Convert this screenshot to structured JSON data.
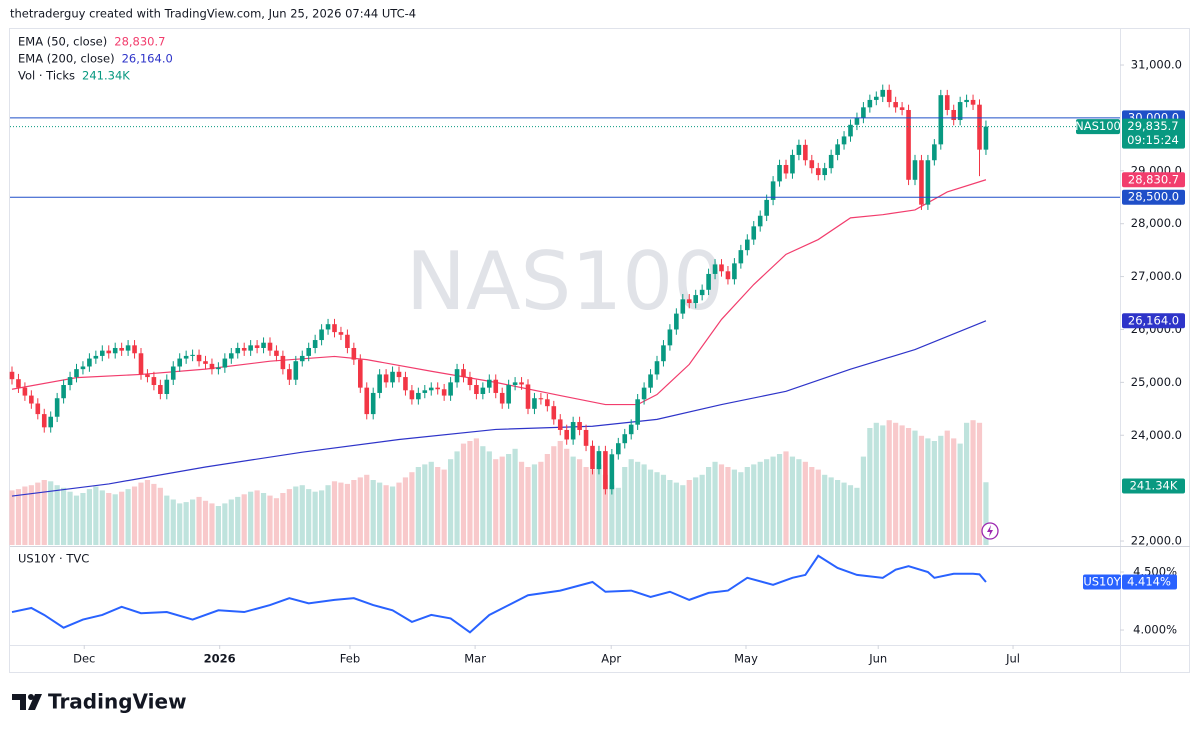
{
  "header": "thetraderguy created with TradingView.com, Jun 25, 2026 07:44 UTC-4",
  "footer": "TradingView",
  "chart_data": [
    {
      "type": "candlestick",
      "symbol": "NAS100",
      "up_color": "#089981",
      "down_color": "#f23645",
      "open": [
        25200,
        25060,
        24900,
        24750,
        24600,
        24400,
        24150,
        24350,
        24700,
        24950,
        25100,
        25250,
        25300,
        25450,
        25500,
        25600,
        25550,
        25650,
        25600,
        25700,
        25550,
        25150,
        25100,
        24950,
        24780,
        25050,
        25300,
        25450,
        25500,
        25520,
        25400,
        25350,
        25250,
        25280,
        25450,
        25550,
        25650,
        25600,
        25700,
        25650,
        25750,
        25600,
        25500,
        25250,
        25050,
        25400,
        25500,
        25650,
        25800,
        26000,
        26100,
        25950,
        25900,
        25650,
        25430,
        24900,
        24400,
        24800,
        25150,
        25000,
        25200,
        25100,
        24850,
        24680,
        24800,
        24850,
        24900,
        24870,
        24750,
        25000,
        25250,
        25100,
        24950,
        24780,
        24900,
        25050,
        24800,
        24600,
        24950,
        25000,
        24960,
        24500,
        24700,
        24680,
        24550,
        24300,
        24100,
        23920,
        24250,
        24100,
        23800,
        23360,
        23700,
        22980,
        23640,
        23850,
        24020,
        24200,
        24680,
        24900,
        25150,
        25400,
        25700,
        26000,
        26300,
        26570,
        26500,
        26650,
        26750,
        27050,
        27230,
        27100,
        26950,
        27250,
        27500,
        27700,
        27950,
        28150,
        28450,
        28800,
        29110,
        28950,
        29300,
        29490,
        29200,
        29050,
        28920,
        29050,
        29300,
        29500,
        29650,
        29870,
        30000,
        30200,
        30340,
        30400,
        30530,
        30300,
        30200,
        30150,
        28830,
        29200,
        28360,
        29200,
        29500,
        30430,
        30150,
        29960,
        30300,
        30340,
        30250,
        29400
      ],
      "high": [
        25300,
        25160,
        25000,
        24850,
        24700,
        24500,
        24450,
        24800,
        25050,
        25200,
        25350,
        25400,
        25550,
        25600,
        25700,
        25700,
        25750,
        25750,
        25800,
        25800,
        25650,
        25250,
        25200,
        25050,
        25150,
        25400,
        25550,
        25600,
        25620,
        25620,
        25500,
        25450,
        25380,
        25550,
        25650,
        25750,
        25750,
        25800,
        25800,
        25850,
        25850,
        25700,
        25600,
        25350,
        25500,
        25600,
        25750,
        25900,
        26100,
        26200,
        26200,
        26050,
        26000,
        25750,
        25530,
        25000,
        24900,
        25250,
        25250,
        25300,
        25300,
        25200,
        24950,
        24900,
        24950,
        25000,
        25000,
        24970,
        25100,
        25350,
        25350,
        25200,
        25050,
        25000,
        25150,
        25150,
        24900,
        25050,
        25100,
        25100,
        25060,
        24800,
        24800,
        24780,
        24650,
        24400,
        24200,
        24350,
        24350,
        24200,
        23900,
        23800,
        23800,
        23740,
        23950,
        24120,
        24300,
        24780,
        25000,
        25250,
        25500,
        25800,
        26100,
        26400,
        26670,
        26670,
        26750,
        26850,
        27150,
        27330,
        27330,
        27200,
        27350,
        27600,
        27800,
        28050,
        28250,
        28550,
        28900,
        29210,
        29210,
        29400,
        29590,
        29590,
        29300,
        29150,
        29150,
        29400,
        29600,
        29750,
        29970,
        30100,
        30300,
        30440,
        30500,
        30630,
        30630,
        30400,
        30300,
        30250,
        29300,
        29300,
        29300,
        29600,
        30530,
        30530,
        30250,
        30400,
        30440,
        30440,
        30350,
        29950
      ],
      "low": [
        24960,
        24800,
        24650,
        24500,
        24300,
        24050,
        24050,
        24250,
        24600,
        24850,
        25000,
        25150,
        25200,
        25350,
        25400,
        25450,
        25450,
        25500,
        25500,
        25450,
        25050,
        25000,
        24850,
        24680,
        24680,
        24950,
        25200,
        25350,
        25400,
        25300,
        25250,
        25150,
        25150,
        25180,
        25350,
        25450,
        25500,
        25500,
        25550,
        25550,
        25500,
        25400,
        25150,
        24950,
        24950,
        25300,
        25400,
        25550,
        25700,
        25900,
        25850,
        25800,
        25550,
        25330,
        24800,
        24300,
        24300,
        24700,
        24900,
        24900,
        25000,
        24750,
        24580,
        24580,
        24700,
        24750,
        24770,
        24650,
        24650,
        24900,
        25000,
        24850,
        24680,
        24680,
        24800,
        24700,
        24500,
        24500,
        24850,
        24860,
        24400,
        24400,
        24580,
        24450,
        24200,
        24000,
        23820,
        23820,
        24000,
        23700,
        23260,
        23260,
        22880,
        22880,
        23540,
        23750,
        23920,
        24100,
        24580,
        24800,
        25050,
        25300,
        25600,
        25900,
        26200,
        26400,
        26400,
        26550,
        26650,
        26950,
        27000,
        26850,
        26850,
        27150,
        27400,
        27600,
        27850,
        28050,
        28350,
        28700,
        28850,
        28850,
        29200,
        29100,
        28950,
        28820,
        28820,
        28950,
        29200,
        29400,
        29550,
        29770,
        29900,
        30100,
        30240,
        30300,
        30200,
        30100,
        30050,
        28730,
        28730,
        28260,
        28260,
        29100,
        29400,
        30050,
        29860,
        29860,
        30200,
        30150,
        28900,
        29300
      ],
      "close": [
        25060,
        24900,
        24750,
        24600,
        24400,
        24150,
        24350,
        24700,
        24950,
        25100,
        25250,
        25300,
        25450,
        25500,
        25600,
        25550,
        25650,
        25600,
        25700,
        25550,
        25150,
        25100,
        24950,
        24780,
        25050,
        25300,
        25450,
        25500,
        25520,
        25400,
        25350,
        25250,
        25280,
        25450,
        25550,
        25650,
        25600,
        25700,
        25650,
        25750,
        25600,
        25500,
        25250,
        25050,
        25400,
        25500,
        25650,
        25800,
        26000,
        26100,
        25950,
        25900,
        25650,
        25430,
        24900,
        24400,
        24800,
        25150,
        25000,
        25200,
        25100,
        24850,
        24680,
        24800,
        24850,
        24900,
        24870,
        24750,
        25000,
        25250,
        25100,
        24950,
        24780,
        24900,
        25050,
        24800,
        24600,
        24950,
        25000,
        24960,
        24500,
        24700,
        24680,
        24550,
        24300,
        24100,
        23920,
        24250,
        24100,
        23800,
        23360,
        23700,
        22980,
        23640,
        23850,
        24020,
        24200,
        24680,
        24900,
        25150,
        25400,
        25700,
        26000,
        26300,
        26570,
        26500,
        26650,
        26750,
        27050,
        27230,
        27100,
        26950,
        27250,
        27500,
        27700,
        27950,
        28150,
        28450,
        28800,
        29110,
        28950,
        29300,
        29490,
        29200,
        29050,
        28920,
        29050,
        29300,
        29500,
        29650,
        29870,
        30000,
        30200,
        30340,
        30400,
        30530,
        30300,
        30200,
        30150,
        28830,
        29200,
        28360,
        29200,
        29500,
        30430,
        30150,
        29960,
        30300,
        30340,
        30250,
        29400,
        29835.7
      ],
      "close_label": "29,835.7",
      "countdown": "09:15:24",
      "ylim": [
        21925,
        31700
      ],
      "yticks": [
        {
          "value": 31000,
          "label": "31,000.0"
        },
        {
          "value": 29000,
          "label": "29,000.0"
        },
        {
          "value": 28000,
          "label": "28,000.0"
        },
        {
          "value": 27000,
          "label": "27,000.0"
        },
        {
          "value": 26000,
          "label": "26,000.0"
        },
        {
          "value": 25000,
          "label": "25,000.0"
        },
        {
          "value": 24000,
          "label": "24,000.0"
        },
        {
          "value": 22000,
          "label": "22,000.0"
        }
      ],
      "xticks": [
        {
          "value": 11.2,
          "label": "Dec"
        },
        {
          "value": 32.2,
          "label": "2026"
        },
        {
          "value": 52.4,
          "label": "Feb"
        },
        {
          "value": 71.8,
          "label": "Mar"
        },
        {
          "value": 92.9,
          "label": "Apr"
        },
        {
          "value": 113.8,
          "label": "May"
        },
        {
          "value": 134.3,
          "label": "Jun"
        },
        {
          "value": 155.2,
          "label": "Jul"
        }
      ],
      "hlines": [
        {
          "value": 30000,
          "label": "30,000.0",
          "color": "#1f4fc8"
        },
        {
          "value": 28500,
          "label": "28,500.0",
          "color": "#1f4fc8"
        }
      ],
      "indicators": [
        {
          "name": "EMA (50, close)",
          "last_label": "28,830.7",
          "color": "#f23d6d",
          "x": [
            0,
            10,
            20,
            30,
            40,
            50,
            55,
            65,
            75,
            85,
            92,
            97,
            100,
            105,
            110,
            115,
            120,
            125,
            130,
            135,
            140,
            145,
            151
          ],
          "values": [
            24870,
            25090,
            25150,
            25250,
            25400,
            25490,
            25430,
            25210,
            25000,
            24750,
            24580,
            24580,
            24770,
            25340,
            26190,
            26850,
            27420,
            27700,
            28110,
            28170,
            28260,
            28600,
            28830.7
          ]
        },
        {
          "name": "EMA (200, close)",
          "last_label": "26,164.0",
          "color": "#2e34c9",
          "x": [
            0,
            15,
            30,
            45,
            60,
            75,
            90,
            100,
            110,
            120,
            130,
            140,
            151
          ],
          "values": [
            22850,
            23080,
            23400,
            23680,
            23920,
            24110,
            24170,
            24300,
            24580,
            24830,
            25250,
            25620,
            26164
          ]
        }
      ],
      "volume": {
        "name": "Vol · Ticks",
        "last_label": "241.34K",
        "up_color": "#bfe3dd",
        "down_color": "#f8c9cb",
        "values": [
          210,
          215,
          225,
          230,
          240,
          250,
          245,
          230,
          220,
          205,
          190,
          200,
          215,
          225,
          210,
          200,
          195,
          205,
          215,
          225,
          240,
          250,
          235,
          220,
          190,
          175,
          160,
          165,
          175,
          185,
          170,
          160,
          150,
          160,
          175,
          185,
          195,
          205,
          210,
          200,
          190,
          180,
          200,
          215,
          225,
          230,
          215,
          205,
          210,
          230,
          245,
          240,
          235,
          250,
          260,
          270,
          250,
          240,
          230,
          225,
          240,
          260,
          280,
          300,
          310,
          320,
          300,
          290,
          330,
          360,
          390,
          400,
          410,
          380,
          360,
          330,
          340,
          350,
          370,
          320,
          300,
          310,
          320,
          350,
          380,
          400,
          370,
          340,
          330,
          300,
          290,
          310,
          270,
          230,
          220,
          300,
          330,
          320,
          310,
          290,
          280,
          270,
          250,
          240,
          230,
          250,
          260,
          270,
          300,
          320,
          310,
          300,
          290,
          280,
          300,
          310,
          320,
          330,
          340,
          350,
          360,
          340,
          330,
          320,
          300,
          290,
          270,
          260,
          250,
          240,
          230,
          220,
          340,
          450,
          470,
          460,
          480,
          470,
          460,
          450,
          440,
          420,
          410,
          400,
          420,
          440,
          410,
          390,
          470,
          480,
          470,
          241.34
        ]
      }
    },
    {
      "type": "line",
      "name": "US10Y · TVC",
      "badge": "US10Y",
      "last_label": "4.414%",
      "color": "#2962ff",
      "x": [
        0,
        3,
        5,
        8,
        11,
        14,
        17,
        20,
        24,
        28,
        32,
        36,
        40,
        43,
        46,
        50,
        53,
        56,
        59,
        62,
        65,
        68,
        71,
        74,
        77,
        80,
        85,
        90,
        92,
        96,
        99,
        102,
        105,
        108,
        111,
        114,
        118,
        121,
        123,
        125,
        128,
        131,
        135,
        137,
        139,
        142,
        143,
        146,
        149,
        150,
        151
      ],
      "values": [
        4.155,
        4.19,
        4.13,
        4.02,
        4.09,
        4.13,
        4.2,
        4.145,
        4.155,
        4.09,
        4.17,
        4.155,
        4.215,
        4.275,
        4.23,
        4.26,
        4.275,
        4.215,
        4.17,
        4.07,
        4.13,
        4.1,
        3.98,
        4.13,
        4.215,
        4.3,
        4.34,
        4.414,
        4.33,
        4.34,
        4.285,
        4.33,
        4.26,
        4.32,
        4.34,
        4.45,
        4.39,
        4.45,
        4.475,
        4.64,
        4.535,
        4.475,
        4.45,
        4.52,
        4.55,
        4.5,
        4.45,
        4.485,
        4.485,
        4.48,
        4.414
      ],
      "ylim": [
        3.871,
        4.707
      ],
      "yticks": [
        {
          "value": 4.5,
          "label": "4.500%"
        },
        {
          "value": 4.0,
          "label": "4.000%"
        }
      ]
    }
  ]
}
